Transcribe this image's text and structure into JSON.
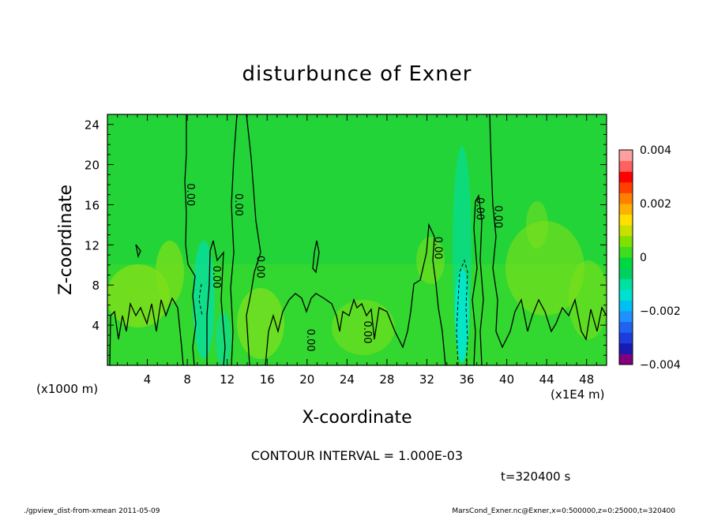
{
  "chart_data": {
    "type": "heatmap",
    "title": "disturbunce of Exner",
    "xlabel": "X-coordinate",
    "ylabel": "Z-coordinate",
    "xlim": [
      0,
      50
    ],
    "ylim": [
      0,
      25
    ],
    "x_ticks": [
      "4",
      "8",
      "12",
      "16",
      "20",
      "24",
      "28",
      "32",
      "36",
      "40",
      "44",
      "48"
    ],
    "y_ticks": [
      "4",
      "8",
      "12",
      "16",
      "20",
      "24"
    ],
    "x_unit": "(x1E4 m)",
    "y_unit": "(x1000 m)",
    "colorbar": {
      "ticks": [
        "0.004",
        "0.002",
        "0",
        "−0.002",
        "−0.004"
      ],
      "range": [
        -0.004,
        0.004
      ],
      "colors": [
        "#800080",
        "#1a1ab0",
        "#1e3cdc",
        "#1e64f0",
        "#1e90ff",
        "#00c0f0",
        "#00e0d0",
        "#00e0a0",
        "#00d060",
        "#00d840",
        "#40dc20",
        "#80e000",
        "#c8e000",
        "#ffe000",
        "#ffb000",
        "#ff8000",
        "#ff4000",
        "#ff0000",
        "#ff6060",
        "#ffa0a0"
      ]
    },
    "contour_labels": [
      {
        "text": "0.00",
        "x": 8,
        "z": 17
      },
      {
        "text": "0.00",
        "x": 12.8,
        "z": 16
      },
      {
        "text": "0.00",
        "x": 15,
        "z": 9.8
      },
      {
        "text": "0.00",
        "x": 10.6,
        "z": 8.8
      },
      {
        "text": "0.00",
        "x": 20,
        "z": 2.5
      },
      {
        "text": "0.00",
        "x": 25.7,
        "z": 3.3
      },
      {
        "text": "0.00",
        "x": 32.8,
        "z": 11.7
      },
      {
        "text": "0.00",
        "x": 37,
        "z": 15.6
      },
      {
        "text": "0.00",
        "x": 38.8,
        "z": 14.8
      }
    ],
    "contour_interval_text": "CONTOUR INTERVAL = 1.000E-03",
    "time_text": "t=320400 s"
  },
  "footer": {
    "left": "./gpview_dist-from-xmean  2011-05-09",
    "right": "MarsCond_Exner.nc@Exner,x=0:500000,z=0:25000,t=320400"
  }
}
